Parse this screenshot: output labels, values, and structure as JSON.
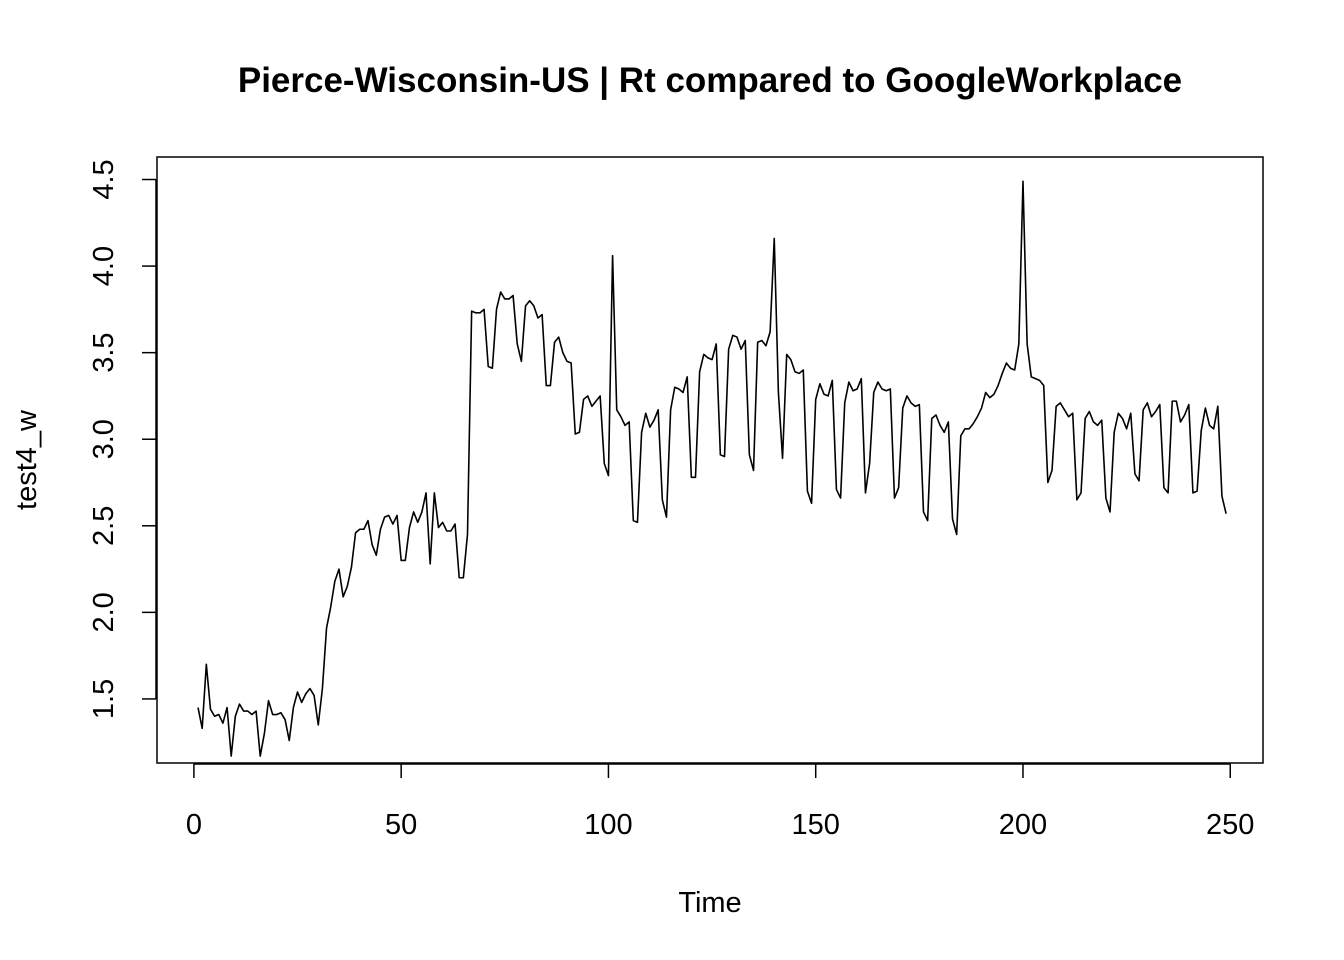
{
  "chart_data": {
    "type": "line",
    "title": "Pierce-Wisconsin-US | Rt compared to GoogleWorkplace",
    "xlabel": "Time",
    "ylabel": "test4_w",
    "xlim": [
      -8.9,
      257.9
    ],
    "ylim": [
      1.13,
      4.63
    ],
    "x_ticks": [
      0,
      50,
      100,
      150,
      200,
      250
    ],
    "y_ticks": [
      1.5,
      2.0,
      2.5,
      3.0,
      3.5,
      4.0,
      4.5
    ],
    "x_tick_labels": [
      "0",
      "50",
      "100",
      "150",
      "200",
      "250"
    ],
    "y_tick_labels": [
      "1.5",
      "2.0",
      "2.5",
      "3.0",
      "3.5",
      "4.0",
      "4.5"
    ],
    "grid": false,
    "legend": "none",
    "line_color": "#000000",
    "x_start": 1,
    "series": [
      {
        "values": [
          1.45,
          1.33,
          1.7,
          1.44,
          1.4,
          1.41,
          1.36,
          1.45,
          1.17,
          1.4,
          1.47,
          1.43,
          1.43,
          1.41,
          1.43,
          1.17,
          1.3,
          1.49,
          1.41,
          1.41,
          1.42,
          1.38,
          1.26,
          1.45,
          1.54,
          1.48,
          1.53,
          1.56,
          1.52,
          1.35,
          1.56,
          1.91,
          2.03,
          2.18,
          2.25,
          2.09,
          2.15,
          2.26,
          2.46,
          2.48,
          2.48,
          2.53,
          2.39,
          2.33,
          2.48,
          2.55,
          2.56,
          2.51,
          2.56,
          2.3,
          2.3,
          2.49,
          2.58,
          2.52,
          2.58,
          2.69,
          2.28,
          2.69,
          2.49,
          2.52,
          2.47,
          2.47,
          2.51,
          2.2,
          2.2,
          2.45,
          3.74,
          3.73,
          3.73,
          3.75,
          3.42,
          3.41,
          3.75,
          3.85,
          3.81,
          3.81,
          3.83,
          3.55,
          3.45,
          3.77,
          3.8,
          3.77,
          3.7,
          3.72,
          3.31,
          3.31,
          3.56,
          3.59,
          3.5,
          3.45,
          3.44,
          3.03,
          3.04,
          3.23,
          3.25,
          3.19,
          3.22,
          3.25,
          2.86,
          2.79,
          4.06,
          3.17,
          3.13,
          3.08,
          3.1,
          2.53,
          2.52,
          3.04,
          3.15,
          3.07,
          3.11,
          3.17,
          2.65,
          2.55,
          3.17,
          3.3,
          3.29,
          3.27,
          3.36,
          2.78,
          2.78,
          3.39,
          3.49,
          3.47,
          3.46,
          3.55,
          2.91,
          2.9,
          3.52,
          3.6,
          3.59,
          3.52,
          3.57,
          2.91,
          2.82,
          3.56,
          3.57,
          3.54,
          3.62,
          4.16,
          3.27,
          2.89,
          3.49,
          3.46,
          3.39,
          3.38,
          3.4,
          2.7,
          2.63,
          3.23,
          3.32,
          3.26,
          3.25,
          3.34,
          2.71,
          2.66,
          3.21,
          3.33,
          3.28,
          3.29,
          3.35,
          2.69,
          2.86,
          3.27,
          3.33,
          3.29,
          3.28,
          3.29,
          2.66,
          2.72,
          3.18,
          3.25,
          3.21,
          3.19,
          3.2,
          2.58,
          2.53,
          3.12,
          3.14,
          3.08,
          3.04,
          3.1,
          2.54,
          2.45,
          3.02,
          3.06,
          3.06,
          3.09,
          3.13,
          3.18,
          3.27,
          3.24,
          3.26,
          3.31,
          3.38,
          3.44,
          3.41,
          3.4,
          3.55,
          4.49,
          3.55,
          3.36,
          3.35,
          3.34,
          3.31,
          2.75,
          2.82,
          3.19,
          3.21,
          3.17,
          3.13,
          3.15,
          2.65,
          2.69,
          3.12,
          3.16,
          3.1,
          3.08,
          3.11,
          2.66,
          2.58,
          3.04,
          3.15,
          3.12,
          3.06,
          3.15,
          2.8,
          2.76,
          3.17,
          3.21,
          3.13,
          3.16,
          3.2,
          2.72,
          2.69,
          3.22,
          3.22,
          3.1,
          3.14,
          3.2,
          2.69,
          2.7,
          3.05,
          3.18,
          3.08,
          3.06,
          3.19,
          2.67,
          2.57
        ]
      }
    ]
  }
}
